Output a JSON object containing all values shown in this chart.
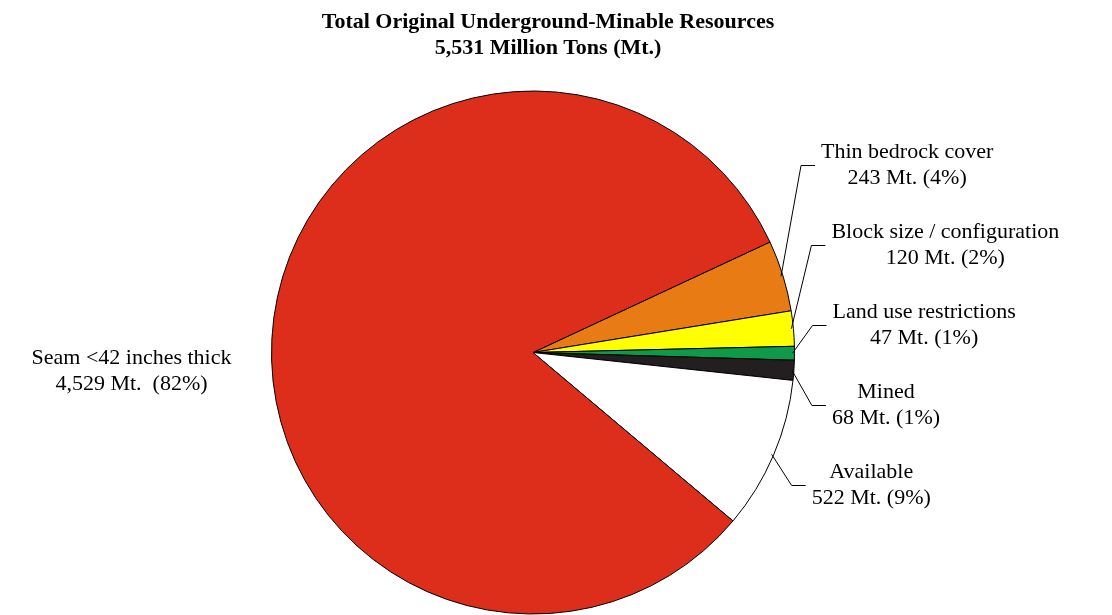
{
  "chart_data": {
    "type": "pie",
    "title": "Total Original Underground-Minable Resources",
    "subtitle": "5,531 Million Tons (Mt.)",
    "categories": [
      "Thin bedrock cover",
      "Block size / configuration",
      "Land use restrictions",
      "Mined",
      "Available",
      "Seam <42 inches thick"
    ],
    "values": [
      243,
      120,
      47,
      68,
      522,
      4529
    ],
    "colors": [
      "#e87b13",
      "#ffff00",
      "#0e9a48",
      "#231f20",
      "#ffffff",
      "#dc2e1a"
    ],
    "value_labels": [
      "243 Mt. (4%)",
      "120 Mt. (2%)",
      "47 Mt. (1%)",
      "68 Mt. (1%)",
      "522 Mt. (9%)",
      "4,529 Mt.  (82%)"
    ],
    "legend": false
  }
}
